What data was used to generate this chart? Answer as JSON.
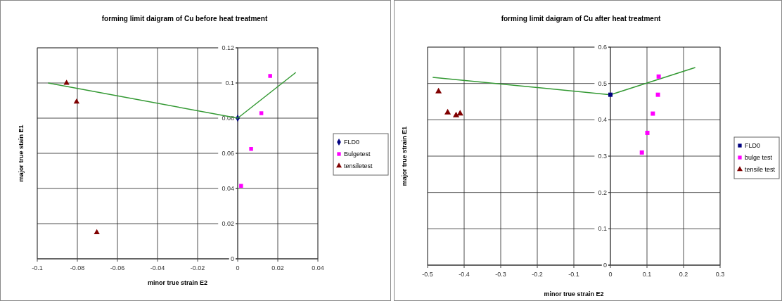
{
  "chart_data": [
    {
      "type": "scatter",
      "title": "forming limit daigram  of Cu before  heat treatment",
      "xlabel": "minor true strain E2",
      "ylabel": "major true stain E1",
      "xlim": [
        -0.1,
        0.04
      ],
      "xticks": [
        -0.1,
        -0.08,
        -0.06,
        -0.04,
        -0.02,
        0,
        0.02,
        0.04
      ],
      "ylim": [
        0,
        0.12
      ],
      "yticks": [
        0,
        0.02,
        0.04,
        0.06,
        0.08,
        0.1,
        0.12
      ],
      "grid": true,
      "legend": "right",
      "series": [
        {
          "name": "FLD0",
          "color": "#000080",
          "marker": "diamond",
          "x": [
            0
          ],
          "values": [
            0.08
          ]
        },
        {
          "name": "Bulgetest",
          "color": "#ff00ff",
          "marker": "square",
          "x": [
            0.0162,
            0.0118,
            0.0067,
            0.0017
          ],
          "values": [
            0.104,
            0.0828,
            0.0625,
            0.0415
          ]
        },
        {
          "name": "tensiletest",
          "color": "#800000",
          "marker": "triangle",
          "x": [
            -0.0854,
            -0.0804,
            -0.0703
          ],
          "values": [
            0.1,
            0.0893,
            0.015
          ]
        },
        {
          "type": "line",
          "color": "#339933",
          "marker": "none",
          "x": [
            -0.0946,
            0,
            0.029
          ],
          "values": [
            0.1,
            0.08,
            0.106
          ]
        }
      ]
    },
    {
      "type": "scatter",
      "title": "forming limit daigram of Cu after heat treatment",
      "xlabel": "minor true strain E2",
      "ylabel": "major true strain E1",
      "xlim": [
        -0.5,
        0.3
      ],
      "xticks": [
        -0.5,
        -0.4,
        -0.3,
        -0.2,
        -0.1,
        0,
        0.1,
        0.2,
        0.3
      ],
      "ylim": [
        0,
        0.6
      ],
      "yticks": [
        0,
        0.1,
        0.2,
        0.3,
        0.4,
        0.5,
        0.6
      ],
      "grid": true,
      "legend": "right",
      "series": [
        {
          "type": "line",
          "color": "#339933",
          "marker": "none",
          "x": [
            -0.486,
            0,
            0.232
          ],
          "values": [
            0.517,
            0.469,
            0.544
          ]
        },
        {
          "name": "FLD0",
          "color": "#000080",
          "marker": "square",
          "x": [
            0
          ],
          "values": [
            0.469
          ]
        },
        {
          "name": "bulge test",
          "color": "#ff00ff",
          "marker": "square",
          "x": [
            0.132,
            0.13,
            0.116,
            0.101,
            0.086
          ],
          "values": [
            0.519,
            0.469,
            0.417,
            0.364,
            0.31
          ]
        },
        {
          "name": "tensile test",
          "color": "#800000",
          "marker": "triangle",
          "x": [
            -0.47,
            -0.445,
            -0.422,
            -0.411
          ],
          "values": [
            0.478,
            0.42,
            0.412,
            0.417
          ]
        }
      ]
    }
  ]
}
